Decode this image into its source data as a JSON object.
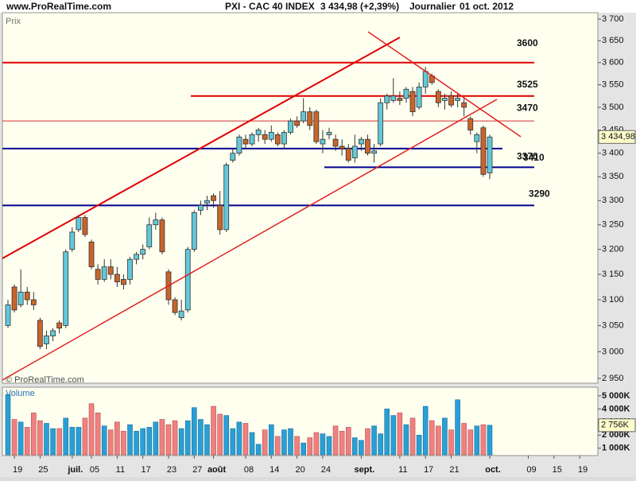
{
  "header": {
    "site": "www.ProRealTime.com",
    "instrument": "PXI - CAC 40 INDEX",
    "quote": "3 434,98 (+2,39%)",
    "period": "Journalier",
    "date": "01 oct. 2012"
  },
  "chart_data": [
    {
      "type": "candlestick",
      "panel_label": "Prix",
      "watermark": "© ProRealTime.com",
      "last_label": "3 434,98",
      "up_color": "#62c8d8",
      "down_color": "#c8642c",
      "log_scale": true,
      "categories": [
        null,
        "19",
        null,
        null,
        null,
        "25",
        null,
        null,
        null,
        null,
        "juil.",
        null,
        null,
        "05",
        null,
        null,
        null,
        "11",
        null,
        null,
        null,
        "17",
        null,
        null,
        null,
        "23",
        null,
        null,
        null,
        "27",
        null,
        null,
        "août",
        null,
        null,
        null,
        null,
        "08",
        null,
        null,
        null,
        "14",
        null,
        null,
        null,
        "20",
        null,
        null,
        null,
        "24",
        null,
        null,
        null,
        null,
        null,
        "sept.",
        null,
        null,
        null,
        null,
        null,
        "11",
        null,
        null,
        null,
        "17",
        null,
        null,
        null,
        "21",
        null,
        null,
        null,
        null,
        null,
        "oct.",
        null,
        null,
        null,
        null,
        null,
        "09",
        null,
        null,
        null,
        "15",
        null,
        null,
        null,
        "19",
        null,
        null
      ],
      "open": [
        3050,
        3125,
        3090,
        3115,
        3100,
        3060,
        3015,
        3030,
        3055,
        3050,
        3200,
        3240,
        3265,
        3215,
        3160,
        3140,
        3165,
        3150,
        3140,
        3140,
        3180,
        3190,
        3205,
        3250,
        3260,
        3155,
        3100,
        3065,
        3080,
        3200,
        3280,
        3295,
        3310,
        3290,
        3240,
        3385,
        3400,
        3430,
        3420,
        3440,
        3440,
        3430,
        3440,
        3420,
        3445,
        3470,
        3470,
        3490,
        3490,
        3420,
        3440,
        3430,
        3415,
        3410,
        3390,
        3420,
        3430,
        3400,
        3420,
        3510,
        3515,
        3520,
        3520,
        3535,
        3500,
        3545,
        3570,
        3535,
        3515,
        3525,
        3515,
        3510,
        3475,
        3425,
        3455,
        3358,
        null,
        null,
        null,
        null,
        null,
        null,
        null,
        null,
        null,
        null,
        null,
        null,
        null,
        null,
        null,
        null
      ],
      "high": [
        3100,
        3130,
        3160,
        3125,
        3115,
        3065,
        3040,
        3045,
        3060,
        3200,
        3245,
        3270,
        3270,
        3220,
        3170,
        3180,
        3180,
        3165,
        3150,
        3185,
        3195,
        3210,
        3265,
        3275,
        3265,
        3160,
        3105,
        3100,
        3205,
        3280,
        3300,
        3310,
        3315,
        3320,
        3380,
        3410,
        3440,
        3440,
        3445,
        3455,
        3450,
        3460,
        3445,
        3450,
        3475,
        3480,
        3520,
        3500,
        3495,
        3450,
        3455,
        3440,
        3430,
        3420,
        3440,
        3435,
        3440,
        3420,
        3520,
        3530,
        3565,
        3535,
        3545,
        3545,
        3555,
        3590,
        3575,
        3540,
        3530,
        3535,
        3530,
        3520,
        3480,
        3445,
        3460,
        3440,
        null,
        null,
        null,
        null,
        null,
        null,
        null,
        null,
        null,
        null,
        null,
        null,
        null,
        null,
        null,
        null
      ],
      "low": [
        3045,
        3075,
        3085,
        3090,
        3080,
        3005,
        3005,
        3020,
        3035,
        3045,
        3195,
        3235,
        3225,
        3160,
        3130,
        3135,
        3140,
        3125,
        3120,
        3130,
        3170,
        3180,
        3200,
        3240,
        3190,
        3090,
        3070,
        3060,
        3075,
        3195,
        3270,
        3280,
        3285,
        3230,
        3235,
        3380,
        3395,
        3410,
        3415,
        3425,
        3420,
        3425,
        3415,
        3410,
        3440,
        3455,
        3465,
        3450,
        3420,
        3400,
        3430,
        3405,
        3395,
        3380,
        3380,
        3405,
        3395,
        3380,
        3415,
        3495,
        3510,
        3505,
        3510,
        3480,
        3495,
        3530,
        3550,
        3500,
        3495,
        3500,
        3500,
        3480,
        3440,
        3400,
        3350,
        3345,
        null,
        null,
        null,
        null,
        null,
        null,
        null,
        null,
        null,
        null,
        null,
        null,
        null,
        null,
        null,
        null
      ],
      "close": [
        3090,
        3080,
        3115,
        3100,
        3090,
        3010,
        3030,
        3040,
        3045,
        3195,
        3235,
        3265,
        3230,
        3165,
        3140,
        3165,
        3150,
        3135,
        3130,
        3180,
        3190,
        3200,
        3250,
        3260,
        3195,
        3100,
        3075,
        3078,
        3200,
        3275,
        3290,
        3300,
        3300,
        3240,
        3375,
        3400,
        3435,
        3420,
        3440,
        3450,
        3430,
        3445,
        3420,
        3445,
        3470,
        3460,
        3490,
        3460,
        3425,
        3430,
        3445,
        3415,
        3410,
        3385,
        3415,
        3430,
        3400,
        3405,
        3510,
        3525,
        3525,
        3515,
        3540,
        3490,
        3545,
        3580,
        3555,
        3510,
        3520,
        3505,
        3520,
        3500,
        3450,
        3440,
        3355,
        3434.98,
        null,
        null,
        null,
        null,
        null,
        null,
        null,
        null,
        null,
        null,
        null,
        null,
        null,
        null,
        null,
        null
      ],
      "ylim": [
        2941,
        3715
      ],
      "yticks": [
        {
          "value": 2950,
          "label": "2 950"
        },
        {
          "value": 3000,
          "label": "3 000"
        },
        {
          "value": 3050,
          "label": "3 050"
        },
        {
          "value": 3100,
          "label": "3 100"
        },
        {
          "value": 3150,
          "label": "3 150"
        },
        {
          "value": 3200,
          "label": "3 200"
        },
        {
          "value": 3250,
          "label": "3 250"
        },
        {
          "value": 3300,
          "label": "3 300"
        },
        {
          "value": 3350,
          "label": "3 350"
        },
        {
          "value": 3400,
          "label": "3 400"
        },
        {
          "value": 3450,
          "label": "3 450"
        },
        {
          "value": 3500,
          "label": "3 500"
        },
        {
          "value": 3550,
          "label": "3 550"
        },
        {
          "value": 3600,
          "label": "3 600"
        },
        {
          "value": 3650,
          "label": "3 650"
        },
        {
          "value": 3700,
          "label": "3 700"
        }
      ],
      "levels": [
        {
          "value": 3600,
          "color": "#e00000"
        },
        {
          "value": 3525,
          "color": "#e00000"
        },
        {
          "value": 3470,
          "color": "#d03030"
        },
        {
          "value": 3410,
          "color": "#000090"
        },
        {
          "value": 3370,
          "color": "#000090"
        },
        {
          "value": 3290,
          "color": "#000090"
        }
      ]
    },
    {
      "type": "bar",
      "panel_label": "Volume",
      "last_label": "2 756K",
      "up_color": "#2a9fd6",
      "down_color": "#f08080",
      "values": [
        5100000,
        3200000,
        3000000,
        2600000,
        3700000,
        3100000,
        2900000,
        2500000,
        2500000,
        3300000,
        2600000,
        2600000,
        3300000,
        4400000,
        3700000,
        2700000,
        2400000,
        3000000,
        2300000,
        2800000,
        2300000,
        2500000,
        2600000,
        3000000,
        3200000,
        2800000,
        3100000,
        2500000,
        3100000,
        4100000,
        3200000,
        2800000,
        4200000,
        3600000,
        3500000,
        2500000,
        3000000,
        2900000,
        2200000,
        1300000,
        2400000,
        2800000,
        1900000,
        2400000,
        2500000,
        1900000,
        1400000,
        1800000,
        2200000,
        2100000,
        1900000,
        2700000,
        2300000,
        2600000,
        1800000,
        1600000,
        2500000,
        2700000,
        2100000,
        4000000,
        3500000,
        3700000,
        2800000,
        3300000,
        2000000,
        4200000,
        3100000,
        2700000,
        3300000,
        2400000,
        4700000,
        2900000,
        2400000,
        2700000,
        2800000,
        2756000,
        null,
        null,
        null,
        null,
        null,
        null,
        null,
        null,
        null,
        null,
        null,
        null,
        null,
        null,
        null,
        null
      ],
      "ylim": [
        500000,
        5600000
      ],
      "yticks": [
        {
          "value": 1000000,
          "label": "1 000K"
        },
        {
          "value": 2000000,
          "label": "2 000K"
        },
        {
          "value": 3000000,
          "label": "3 000K"
        },
        {
          "value": 4000000,
          "label": "4 000K"
        },
        {
          "value": 5000000,
          "label": "5 000K"
        }
      ]
    }
  ]
}
